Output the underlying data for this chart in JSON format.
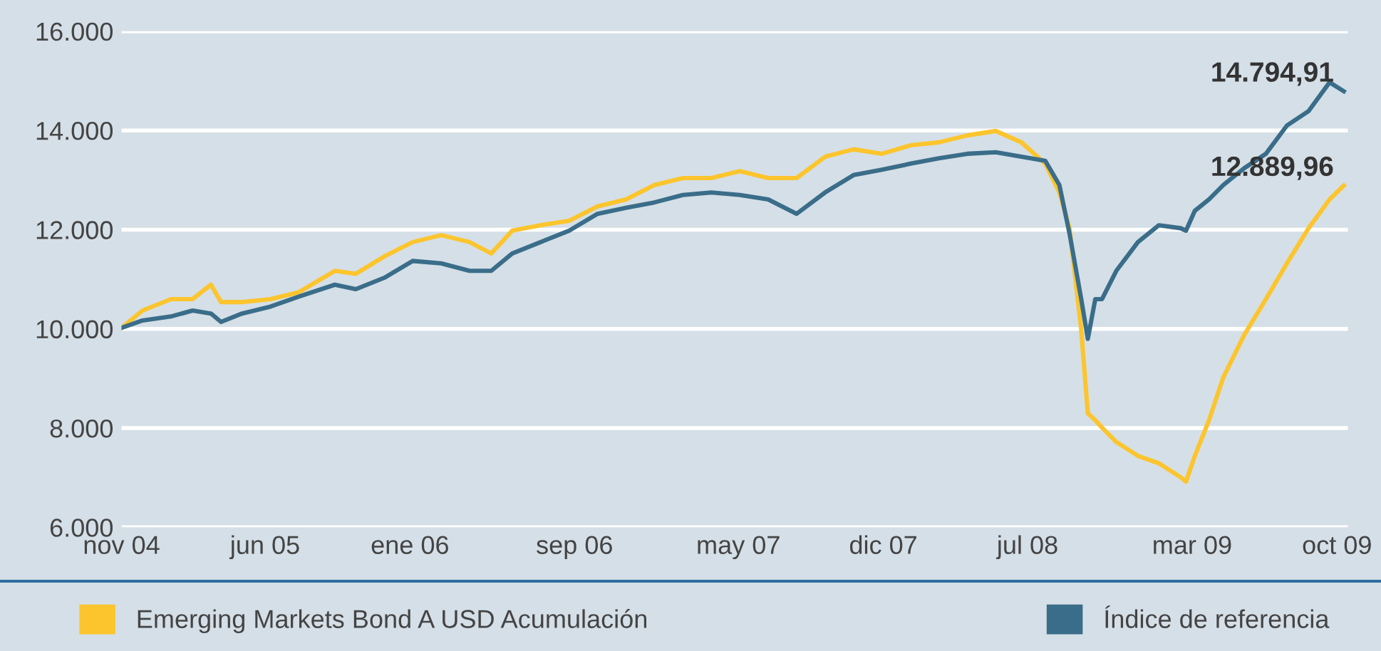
{
  "chart_data": {
    "type": "line",
    "x": [
      "2004-11-01",
      "2004-12-02",
      "2005-01-13",
      "2005-02-14",
      "2005-03-13",
      "2005-03-28",
      "2005-04-28",
      "2005-06-09",
      "2005-07-21",
      "2005-09-12",
      "2005-10-13",
      "2005-11-24",
      "2006-01-05",
      "2006-02-16",
      "2006-03-30",
      "2006-05-01",
      "2006-06-01",
      "2006-07-13",
      "2006-08-24",
      "2006-10-05",
      "2006-11-16",
      "2006-12-28",
      "2007-02-08",
      "2007-03-22",
      "2007-05-03",
      "2007-06-14",
      "2007-07-26",
      "2007-09-06",
      "2007-10-18",
      "2007-11-29",
      "2008-01-10",
      "2008-02-21",
      "2008-04-03",
      "2008-05-15",
      "2008-06-22",
      "2008-07-27",
      "2008-08-17",
      "2008-09-01",
      "2008-09-18",
      "2008-09-28",
      "2008-10-09",
      "2008-10-19",
      "2008-11-09",
      "2008-12-11",
      "2009-01-11",
      "2009-02-12",
      "2009-02-20",
      "2009-03-05",
      "2009-03-26",
      "2009-04-16",
      "2009-05-17",
      "2009-06-18",
      "2009-07-19",
      "2009-08-20",
      "2009-09-20",
      "2009-10-11"
    ],
    "series": [
      {
        "name": "Emerging Markets Bond A USD Acumulación",
        "color": "#fcc52d",
        "values": [
          10020,
          10370,
          10600,
          10600,
          10890,
          10540,
          10540,
          10600,
          10740,
          11170,
          11110,
          11460,
          11750,
          11890,
          11750,
          11520,
          11980,
          12090,
          12180,
          12470,
          12610,
          12900,
          13040,
          13040,
          13180,
          13040,
          13040,
          13470,
          13620,
          13530,
          13700,
          13760,
          13900,
          13990,
          13760,
          13330,
          12750,
          12030,
          10020,
          8300,
          8160,
          8010,
          7720,
          7440,
          7290,
          7010,
          6920,
          7440,
          8160,
          9020,
          9880,
          10600,
          11320,
          12030,
          12610,
          12890
        ]
      },
      {
        "name": "Índice de referencia",
        "color": "#3a6d89",
        "values": [
          10020,
          10170,
          10250,
          10370,
          10310,
          10140,
          10310,
          10450,
          10650,
          10890,
          10800,
          11030,
          11370,
          11320,
          11170,
          11170,
          11520,
          11750,
          11980,
          12320,
          12440,
          12550,
          12700,
          12750,
          12700,
          12610,
          12320,
          12750,
          13100,
          13210,
          13330,
          13440,
          13530,
          13560,
          13470,
          13390,
          12900,
          11920,
          10620,
          9800,
          10600,
          10600,
          11170,
          11750,
          12090,
          12030,
          11980,
          12380,
          12610,
          12900,
          13240,
          13530,
          14100,
          14390,
          14970,
          14790
        ]
      }
    ],
    "xlim": [
      "2004-11-01",
      "2009-10-17"
    ],
    "xticks": [
      {
        "value": "2004-11-01",
        "label": "nov 04"
      },
      {
        "value": "2005-06-01",
        "label": "jun 05"
      },
      {
        "value": "2006-01-01",
        "label": "ene 06"
      },
      {
        "value": "2006-09-01",
        "label": "sep 06"
      },
      {
        "value": "2007-05-01",
        "label": "may 07"
      },
      {
        "value": "2007-12-01",
        "label": "dic 07"
      },
      {
        "value": "2008-07-01",
        "label": "jul 08"
      },
      {
        "value": "2009-03-01",
        "label": "mar 09"
      },
      {
        "value": "2009-10-01",
        "label": "oct 09"
      }
    ],
    "ylim": [
      6000,
      16000
    ],
    "yticks": [
      {
        "value": 6000,
        "label": "6.000"
      },
      {
        "value": 8000,
        "label": "8.000"
      },
      {
        "value": 10000,
        "label": "10.000"
      },
      {
        "value": 12000,
        "label": "12.000"
      },
      {
        "value": 14000,
        "label": "14.000"
      },
      {
        "value": 16000,
        "label": "16.000"
      }
    ],
    "annotations": [
      {
        "text": "14.794,91",
        "x": "2009-10-11",
        "y": 14790
      },
      {
        "text": "12.889,96",
        "x": "2009-10-11",
        "y": 12890
      }
    ],
    "grid": "y",
    "legend": "bottom",
    "marker": "none",
    "line_style": "solid"
  }
}
